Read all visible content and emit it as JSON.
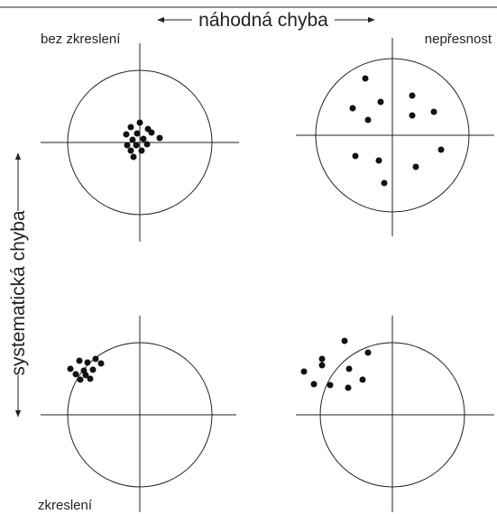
{
  "top_label": "náhodná chyba",
  "side_label": "systematická chyba",
  "quadrants": [
    {
      "label": "bez zkreslení"
    },
    {
      "label": "nepřesnost"
    },
    {
      "label": "zkreslení"
    }
  ]
}
